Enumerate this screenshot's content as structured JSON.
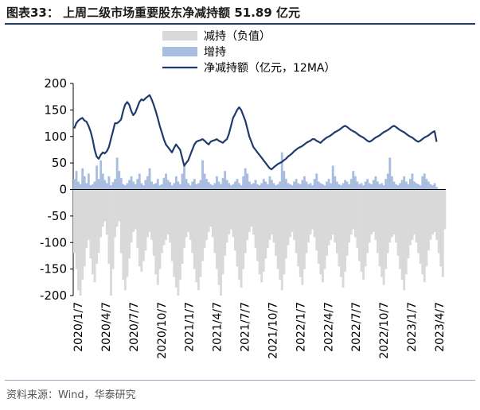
{
  "header": {
    "title": "图表33：  上周二级市场重要股东净减持额 51.89 亿元"
  },
  "source": {
    "text": "资料来源：Wind，华泰研究"
  },
  "chart_data": {
    "type": "bar",
    "title": "",
    "xlabel": "",
    "ylabel": "",
    "ylim": [
      -200,
      200
    ],
    "yticks": [
      200,
      150,
      100,
      50,
      0,
      -50,
      -100,
      -150,
      -200
    ],
    "grid": false,
    "legend_position": "top-center",
    "x_tick_labels": [
      "2020/1/7",
      "2020/4/7",
      "2020/7/7",
      "2020/10/7",
      "2021/1/7",
      "2021/4/7",
      "2021/7/7",
      "2021/10/7",
      "2022/1/7",
      "2022/4/7",
      "2022/7/7",
      "2022/10/7",
      "2023/1/7",
      "2023/4/7"
    ],
    "colors": {
      "reduce": "#d9d9d9",
      "increase": "#a9bde0",
      "net": "#1f3a6b"
    },
    "series": [
      {
        "name": "减持（负值）",
        "kind": "bar",
        "note": "weekly values, roughly 2020/1/7 to 2023/4/7",
        "values": [
          -120,
          -150,
          -190,
          -200,
          -170,
          -145,
          -110,
          -95,
          -130,
          -160,
          -175,
          -140,
          -120,
          -90,
          -70,
          -60,
          -85,
          -140,
          -200,
          -150,
          -90,
          -70,
          -60,
          -120,
          -170,
          -190,
          -165,
          -130,
          -100,
          -80,
          -75,
          -110,
          -145,
          -155,
          -135,
          -115,
          -90,
          -80,
          -95,
          -125,
          -160,
          -180,
          -150,
          -120,
          -105,
          -95,
          -85,
          -100,
          -135,
          -165,
          -185,
          -200,
          -170,
          -140,
          -110,
          -90,
          -80,
          -95,
          -120,
          -150,
          -175,
          -190,
          -165,
          -135,
          -110,
          -95,
          -80,
          -70,
          -90,
          -120,
          -150,
          -180,
          -200,
          -160,
          -125,
          -100,
          -85,
          -75,
          -90,
          -115,
          -145,
          -170,
          -185,
          -150,
          -120,
          -95,
          -80,
          -70,
          -85,
          -110,
          -135,
          -160,
          -175,
          -155,
          -130,
          -110,
          -95,
          -85,
          -100,
          -125,
          -150,
          -170,
          -190,
          -160,
          -130,
          -105,
          -90,
          -80,
          -95,
          -120,
          -145,
          -165,
          -180,
          -150,
          -120,
          -100,
          -85,
          -75,
          -90,
          -115,
          -140,
          -160,
          -175,
          -150,
          -125,
          -105,
          -95,
          -85,
          -100,
          -120,
          -145,
          -165,
          -185,
          -155,
          -125,
          -100,
          -85,
          -75,
          -90,
          -110,
          -135,
          -155,
          -170,
          -145,
          -120,
          -100,
          -85,
          -80,
          -95,
          -120,
          -145,
          -165,
          -180,
          -150,
          -120,
          -100,
          -90,
          -85,
          -100,
          -125,
          -150,
          -170,
          -190,
          -160,
          -130,
          -105,
          -95,
          -85,
          -100,
          -120,
          -140,
          -160,
          -175,
          -145,
          -115,
          -95,
          -85,
          -80,
          -95,
          -120,
          -145,
          -165,
          -75
        ]
      },
      {
        "name": "增持",
        "kind": "bar",
        "values": [
          20,
          35,
          15,
          10,
          40,
          25,
          12,
          30,
          8,
          10,
          15,
          45,
          20,
          55,
          30,
          18,
          12,
          25,
          8,
          14,
          20,
          60,
          35,
          22,
          10,
          8,
          12,
          18,
          25,
          15,
          10,
          20,
          30,
          12,
          8,
          18,
          25,
          40,
          15,
          10,
          12,
          20,
          8,
          10,
          22,
          30,
          18,
          14,
          8,
          12,
          25,
          15,
          10,
          30,
          45,
          20,
          12,
          8,
          15,
          20,
          10,
          12,
          18,
          55,
          30,
          20,
          14,
          10,
          8,
          12,
          25,
          15,
          10,
          22,
          35,
          18,
          12,
          8,
          10,
          15,
          20,
          12,
          8,
          25,
          40,
          30,
          15,
          10,
          12,
          18,
          10,
          8,
          12,
          20,
          15,
          10,
          25,
          18,
          12,
          8,
          10,
          15,
          70,
          35,
          20,
          12,
          10,
          8,
          15,
          20,
          12,
          10,
          18,
          25,
          15,
          10,
          12,
          8,
          20,
          30,
          15,
          12,
          10,
          8,
          15,
          20,
          12,
          45,
          25,
          15,
          10,
          8,
          12,
          18,
          15,
          10,
          20,
          35,
          25,
          15,
          10,
          12,
          8,
          15,
          20,
          12,
          10,
          18,
          25,
          15,
          10,
          12,
          8,
          20,
          30,
          60,
          25,
          15,
          10,
          8,
          12,
          18,
          25,
          15,
          10,
          20,
          30,
          15,
          12,
          10,
          8,
          25,
          30,
          20,
          15,
          10,
          8,
          12,
          5
        ]
      },
      {
        "name": "净减持额（亿元，12MA）",
        "kind": "line",
        "values": [
          115,
          125,
          130,
          133,
          135,
          130,
          128,
          120,
          110,
          95,
          75,
          62,
          58,
          65,
          70,
          68,
          72,
          80,
          95,
          110,
          125,
          125,
          128,
          132,
          148,
          160,
          165,
          160,
          148,
          140,
          145,
          155,
          165,
          170,
          168,
          172,
          175,
          178,
          170,
          160,
          148,
          135,
          120,
          108,
          95,
          85,
          80,
          75,
          70,
          78,
          85,
          80,
          75,
          60,
          45,
          50,
          55,
          65,
          75,
          85,
          90,
          92,
          93,
          95,
          92,
          88,
          85,
          90,
          92,
          93,
          95,
          92,
          90,
          88,
          92,
          95,
          105,
          120,
          135,
          142,
          150,
          155,
          150,
          140,
          130,
          115,
          100,
          90,
          80,
          75,
          70,
          65,
          60,
          55,
          50,
          45,
          40,
          38,
          42,
          45,
          48,
          50,
          52,
          55,
          58,
          62,
          65,
          68,
          72,
          75,
          78,
          80,
          82,
          85,
          88,
          90,
          92,
          95,
          95,
          92,
          90,
          88,
          92,
          95,
          98,
          100,
          102,
          105,
          108,
          110,
          112,
          115,
          118,
          120,
          118,
          115,
          112,
          110,
          108,
          105,
          102,
          100,
          98,
          95,
          92,
          90,
          92,
          95,
          98,
          100,
          102,
          105,
          108,
          110,
          112,
          115,
          118,
          120,
          118,
          115,
          112,
          110,
          108,
          105,
          102,
          100,
          98,
          95,
          92,
          90,
          92,
          95,
          98,
          100,
          102,
          105,
          108,
          110,
          90
        ]
      }
    ]
  }
}
